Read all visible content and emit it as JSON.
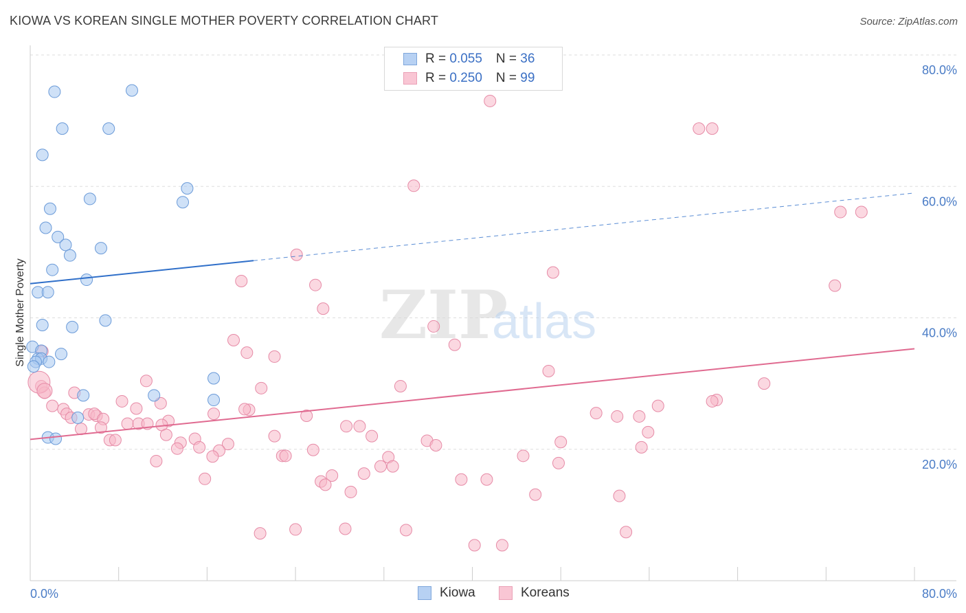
{
  "title": "KIOWA VS KOREAN SINGLE MOTHER POVERTY CORRELATION CHART",
  "source": "Source: ZipAtlas.com",
  "watermark": {
    "zip": "ZIP",
    "atlas": "atlas"
  },
  "legend": {
    "rows": [
      {
        "r_label": "R = ",
        "r_value": "0.055",
        "n_label": "N = ",
        "n_value": "36"
      },
      {
        "r_label": "R = ",
        "r_value": "0.250",
        "n_label": "N = ",
        "n_value": "99"
      }
    ]
  },
  "bottom_legend": {
    "kiowa": "Kiowa",
    "koreans": "Koreans"
  },
  "colors": {
    "kiowa_fill": "#a8c8f0",
    "kiowa_stroke": "#6a9ad8",
    "kiowa_line": "#2f6fc9",
    "koreans_fill": "#f7b8c9",
    "koreans_stroke": "#e68aa6",
    "koreans_line": "#e06a90",
    "tick_text": "#4a7cc6",
    "grid": "#dddddd"
  },
  "chart_data": {
    "type": "scatter",
    "title": "KIOWA VS KOREAN SINGLE MOTHER POVERTY CORRELATION CHART",
    "xlabel": "",
    "ylabel": "Single Mother Poverty",
    "xlim": [
      0,
      80
    ],
    "ylim": [
      0,
      80
    ],
    "x_tick_labels": [
      "0.0%",
      "80.0%"
    ],
    "y_ticks": [
      20,
      40,
      60,
      80
    ],
    "y_tick_labels": [
      "20.0%",
      "40.0%",
      "60.0%",
      "80.0%"
    ],
    "grid": true,
    "legend_position": "top-center",
    "series": [
      {
        "name": "Kiowa",
        "R": 0.055,
        "N": 36,
        "trend": {
          "x0": 0,
          "y0": 45.2,
          "x1": 20.2,
          "y1": 48.7,
          "dash_to_x": 80,
          "dash_to_y": 59.0
        },
        "points": [
          [
            2.2,
            74.4
          ],
          [
            9.2,
            74.6
          ],
          [
            2.9,
            68.8
          ],
          [
            7.1,
            68.8
          ],
          [
            1.1,
            64.8
          ],
          [
            14.2,
            59.7
          ],
          [
            13.8,
            57.6
          ],
          [
            5.4,
            58.1
          ],
          [
            1.8,
            56.6
          ],
          [
            1.4,
            53.7
          ],
          [
            2.5,
            52.3
          ],
          [
            3.2,
            51.1
          ],
          [
            6.4,
            50.6
          ],
          [
            3.6,
            49.5
          ],
          [
            2.0,
            47.3
          ],
          [
            5.1,
            45.8
          ],
          [
            0.7,
            43.9
          ],
          [
            1.6,
            43.9
          ],
          [
            1.1,
            38.9
          ],
          [
            3.8,
            38.6
          ],
          [
            6.8,
            39.6
          ],
          [
            0.2,
            35.6
          ],
          [
            1.0,
            35.0
          ],
          [
            2.8,
            34.5
          ],
          [
            0.7,
            33.8
          ],
          [
            1.0,
            33.8
          ],
          [
            0.5,
            33.3
          ],
          [
            0.3,
            32.6
          ],
          [
            1.7,
            33.3
          ],
          [
            16.6,
            30.8
          ],
          [
            4.8,
            28.2
          ],
          [
            11.2,
            28.2
          ],
          [
            16.6,
            27.5
          ],
          [
            4.3,
            24.8
          ],
          [
            1.6,
            21.8
          ],
          [
            2.3,
            21.6
          ]
        ]
      },
      {
        "name": "Koreans",
        "R": 0.25,
        "N": 99,
        "trend": {
          "x0": 0,
          "y0": 21.5,
          "x1": 80,
          "y1": 35.3
        },
        "points": [
          [
            41.6,
            73.0
          ],
          [
            60.5,
            68.8
          ],
          [
            61.7,
            68.8
          ],
          [
            34.7,
            60.1
          ],
          [
            73.3,
            56.1
          ],
          [
            75.2,
            56.1
          ],
          [
            24.1,
            49.6
          ],
          [
            47.3,
            46.9
          ],
          [
            19.1,
            45.6
          ],
          [
            25.8,
            45.0
          ],
          [
            72.8,
            44.9
          ],
          [
            26.5,
            41.4
          ],
          [
            36.5,
            38.7
          ],
          [
            18.4,
            36.6
          ],
          [
            38.4,
            35.9
          ],
          [
            19.6,
            34.7
          ],
          [
            22.1,
            34.1
          ],
          [
            1.1,
            34.9
          ],
          [
            46.9,
            31.9
          ],
          [
            10.5,
            30.4
          ],
          [
            33.5,
            29.6
          ],
          [
            20.9,
            29.3
          ],
          [
            66.4,
            30.0
          ],
          [
            1.0,
            29.6
          ],
          [
            1.3,
            28.6
          ],
          [
            4.0,
            28.6
          ],
          [
            8.3,
            27.3
          ],
          [
            11.8,
            27.0
          ],
          [
            62.1,
            27.5
          ],
          [
            61.7,
            27.3
          ],
          [
            56.8,
            26.6
          ],
          [
            2.0,
            26.6
          ],
          [
            3.0,
            26.1
          ],
          [
            9.6,
            26.2
          ],
          [
            19.8,
            26.0
          ],
          [
            19.4,
            26.1
          ],
          [
            16.6,
            25.4
          ],
          [
            5.3,
            25.3
          ],
          [
            6.0,
            25.1
          ],
          [
            5.8,
            25.4
          ],
          [
            3.3,
            25.4
          ],
          [
            3.7,
            24.8
          ],
          [
            6.6,
            24.6
          ],
          [
            25.0,
            25.1
          ],
          [
            51.2,
            25.5
          ],
          [
            53.1,
            25.0
          ],
          [
            55.1,
            25.0
          ],
          [
            12.5,
            24.3
          ],
          [
            8.8,
            23.9
          ],
          [
            9.8,
            23.9
          ],
          [
            10.6,
            23.9
          ],
          [
            11.9,
            23.7
          ],
          [
            4.6,
            23.1
          ],
          [
            6.4,
            23.3
          ],
          [
            28.6,
            23.5
          ],
          [
            29.8,
            23.5
          ],
          [
            55.9,
            22.6
          ],
          [
            12.3,
            22.2
          ],
          [
            22.1,
            22.0
          ],
          [
            30.9,
            22.0
          ],
          [
            7.2,
            21.4
          ],
          [
            7.7,
            21.4
          ],
          [
            14.9,
            21.6
          ],
          [
            13.6,
            21.0
          ],
          [
            17.9,
            20.8
          ],
          [
            35.9,
            21.3
          ],
          [
            36.7,
            20.6
          ],
          [
            48.0,
            21.1
          ],
          [
            15.3,
            20.3
          ],
          [
            13.3,
            20.1
          ],
          [
            17.1,
            19.8
          ],
          [
            25.6,
            19.9
          ],
          [
            55.3,
            20.3
          ],
          [
            22.8,
            19.0
          ],
          [
            23.1,
            19.0
          ],
          [
            32.4,
            18.8
          ],
          [
            44.6,
            19.0
          ],
          [
            16.5,
            18.9
          ],
          [
            11.4,
            18.2
          ],
          [
            47.8,
            17.9
          ],
          [
            31.7,
            17.4
          ],
          [
            32.8,
            17.4
          ],
          [
            30.2,
            16.3
          ],
          [
            27.3,
            16.0
          ],
          [
            26.3,
            15.1
          ],
          [
            26.7,
            14.6
          ],
          [
            39.0,
            15.4
          ],
          [
            41.3,
            15.4
          ],
          [
            15.8,
            15.5
          ],
          [
            29.0,
            13.5
          ],
          [
            45.7,
            13.1
          ],
          [
            53.3,
            12.9
          ],
          [
            20.8,
            7.2
          ],
          [
            24.0,
            7.8
          ],
          [
            28.5,
            7.9
          ],
          [
            34.0,
            7.7
          ],
          [
            53.9,
            7.4
          ],
          [
            40.2,
            5.4
          ],
          [
            42.7,
            5.4
          ]
        ]
      }
    ]
  }
}
